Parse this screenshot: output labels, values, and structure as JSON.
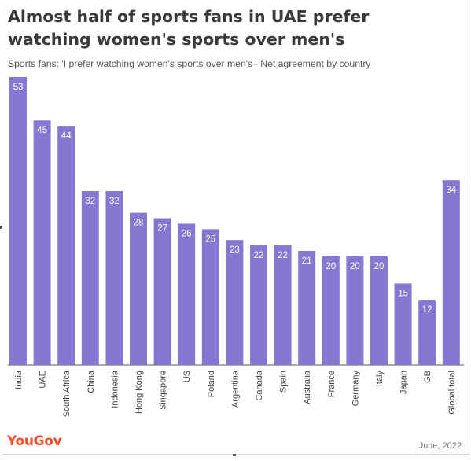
{
  "title": "Almost half of sports fans in UAE prefer watching women's sports over men's",
  "subtitle": "Sports fans: 'I prefer watching women's sports over men's– Net agreement by country",
  "chart_data": {
    "type": "bar",
    "categories": [
      "India",
      "UAE",
      "South Africa",
      "China",
      "Indonesia",
      "Hong Kong",
      "Singapore",
      "US",
      "Poland",
      "Argentina",
      "Canada",
      "Spain",
      "Australia",
      "France",
      "Germany",
      "Italy",
      "Japan",
      "GB",
      "Global total"
    ],
    "values": [
      53,
      45,
      44,
      32,
      32,
      28,
      27,
      26,
      25,
      23,
      22,
      22,
      21,
      20,
      20,
      20,
      15,
      12,
      34
    ],
    "ylim": [
      0,
      53
    ],
    "bar_color": "#8577d2",
    "label_color": "#ffffff",
    "grid": false,
    "data_labels": true
  },
  "footer": {
    "brand": "YouGov",
    "brand_color": "#ff4b2b",
    "date": "June, 2022"
  }
}
